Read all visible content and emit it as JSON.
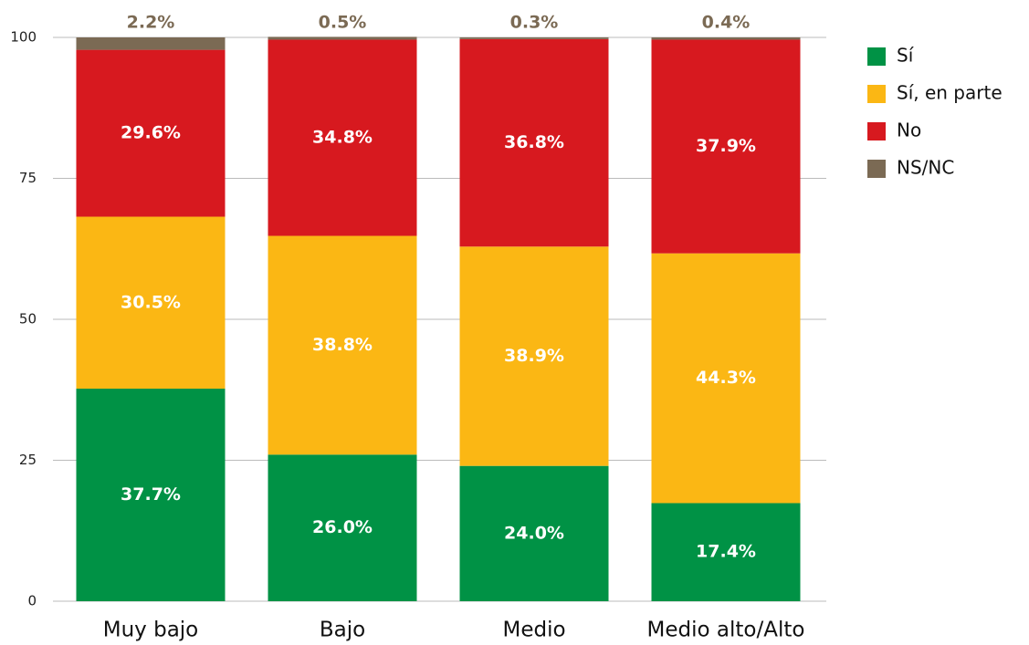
{
  "chart_data": {
    "type": "stacked_bar",
    "categories": [
      "Muy bajo",
      "Bajo",
      "Medio",
      "Medio alto/Alto"
    ],
    "series": [
      {
        "name": "Sí",
        "color": "#009245",
        "values": [
          37.7,
          26.0,
          24.0,
          17.4
        ],
        "value_labels": [
          "37.7%",
          "26.0%",
          "24.0%",
          "17.4%"
        ]
      },
      {
        "name": "Sí, en parte",
        "color": "#fbb714",
        "values": [
          30.5,
          38.8,
          38.9,
          44.3
        ],
        "value_labels": [
          "30.5%",
          "38.8%",
          "38.9%",
          "44.3%"
        ]
      },
      {
        "name": "No",
        "color": "#d7191f",
        "values": [
          29.6,
          34.8,
          36.8,
          37.9
        ],
        "value_labels": [
          "29.6%",
          "34.8%",
          "36.8%",
          "37.9%"
        ]
      },
      {
        "name": "NS/NC",
        "color": "#7b6a54",
        "values": [
          2.2,
          0.5,
          0.3,
          0.4
        ],
        "value_labels": [
          "2.2%",
          "0.5%",
          "0.3%",
          "0.4%"
        ]
      }
    ],
    "ylim": [
      0,
      100
    ],
    "yticks": [
      0,
      25,
      50,
      75,
      100
    ],
    "grid": true,
    "legend": "right"
  }
}
